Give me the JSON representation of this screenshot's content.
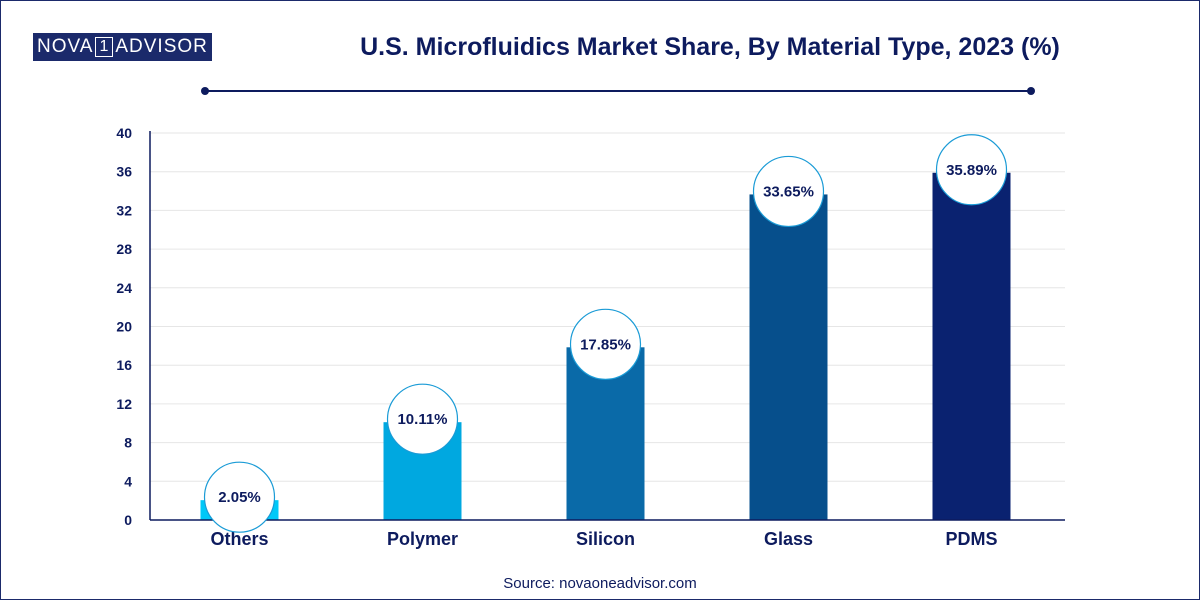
{
  "brand": {
    "logo_left": "NOVA",
    "logo_mid": "1",
    "logo_right": "ADVISOR"
  },
  "header": {
    "title": "U.S. Microfluidics Market Share, By Material Type, 2023 (%)"
  },
  "footer": {
    "source": "Source: novaoneadvisor.com"
  },
  "chart_data": {
    "type": "bar",
    "title": "U.S. Microfluidics Market Share, By Material Type, 2023 (%)",
    "xlabel": "",
    "ylabel": "",
    "ylim": [
      0,
      40
    ],
    "yticks": [
      0,
      4,
      8,
      12,
      16,
      20,
      24,
      28,
      32,
      36,
      40
    ],
    "grid": true,
    "legend": "none",
    "categories": [
      "Others",
      "Polymer",
      "Silicon",
      "Glass",
      "PDMS"
    ],
    "values": [
      2.05,
      10.11,
      17.85,
      33.65,
      35.89
    ],
    "data_labels": [
      "2.05%",
      "10.11%",
      "17.85%",
      "33.65%",
      "35.89%"
    ],
    "colors": [
      "#00c8f8",
      "#00a8e0",
      "#0a6aa8",
      "#064f8c",
      "#0a2270"
    ]
  }
}
